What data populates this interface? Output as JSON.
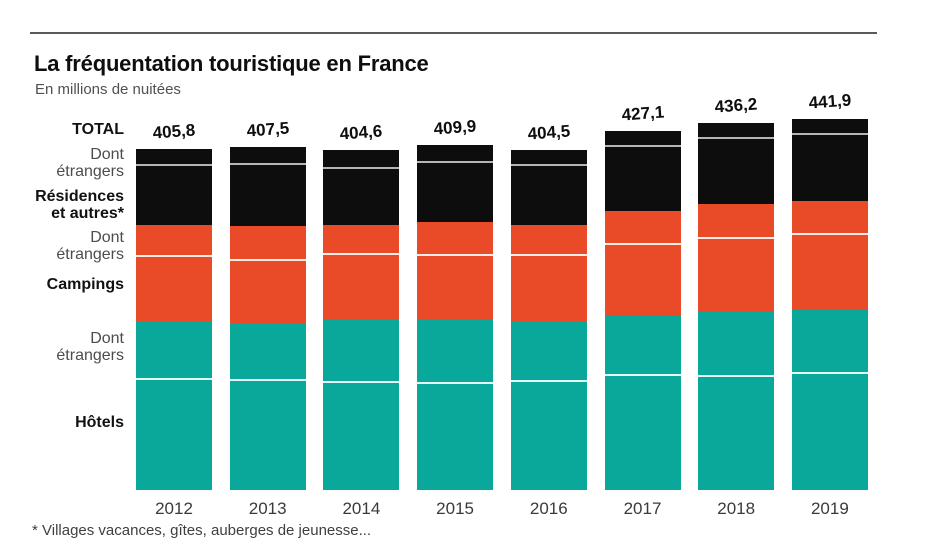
{
  "header": {
    "title": "La fréquentation touristique en France",
    "subtitle": "En millions de nuitées"
  },
  "row_labels": {
    "total": "TOTAL",
    "dont_line1": "Dont",
    "dont_line2": "étrangers",
    "residences_line1": "Résidences",
    "residences_line2": "et autres*",
    "campings": "Campings",
    "hotels": "Hôtels"
  },
  "footnote": "* Villages vacances, gîtes, auberges de jeunesse...",
  "colors": {
    "hotels": "#0aa89a",
    "campings": "#e94b28",
    "residences": "#0d0d0d",
    "rule": "#5a5a5a",
    "divider_on_dark": "#c8c8c8",
    "divider_on_color": "#ffffff"
  },
  "chart_data": {
    "type": "bar",
    "stacked": true,
    "title": "La fréquentation touristique en France",
    "subtitle": "En millions de nuitées",
    "unit": "millions de nuitées",
    "categories": [
      "2012",
      "2013",
      "2014",
      "2015",
      "2016",
      "2017",
      "2018",
      "2019"
    ],
    "totals": [
      405.8,
      407.5,
      404.6,
      409.9,
      404.5,
      427.1,
      436.2,
      441.9
    ],
    "totals_display": [
      "405,8",
      "407,5",
      "404,6",
      "409,9",
      "404,5",
      "427,1",
      "436,2",
      "441,9"
    ],
    "series": [
      {
        "name": "Hôtels",
        "color": "#0aa89a",
        "values": [
          200.3,
          198.7,
          201.7,
          202.2,
          199.7,
          207.0,
          212.0,
          214.0
        ],
        "dont_etrangers": [
          68.6,
          68.4,
          73.2,
          75.1,
          69.5,
          70.6,
          76.2,
          74.5
        ]
      },
      {
        "name": "Campings",
        "color": "#e94b28",
        "values": [
          114.7,
          115.7,
          113.6,
          116.1,
          115.5,
          125.3,
          128.6,
          129.6
        ],
        "dont_etrangers": [
          36.2,
          40.4,
          34.4,
          38.7,
          36.1,
          40.0,
          40.5,
          39.2
        ]
      },
      {
        "name": "Résidences et autres*",
        "color": "#0d0d0d",
        "values": [
          90.8,
          93.1,
          89.3,
          91.6,
          89.3,
          94.8,
          95.6,
          98.3
        ],
        "dont_etrangers": [
          19.4,
          20.2,
          21.0,
          19.8,
          18.1,
          17.5,
          17.4,
          17.8
        ]
      }
    ],
    "legend_position": "left-row-labels",
    "grid": false,
    "footnote": "* Villages vacances, gîtes, auberges de jeunesse..."
  }
}
